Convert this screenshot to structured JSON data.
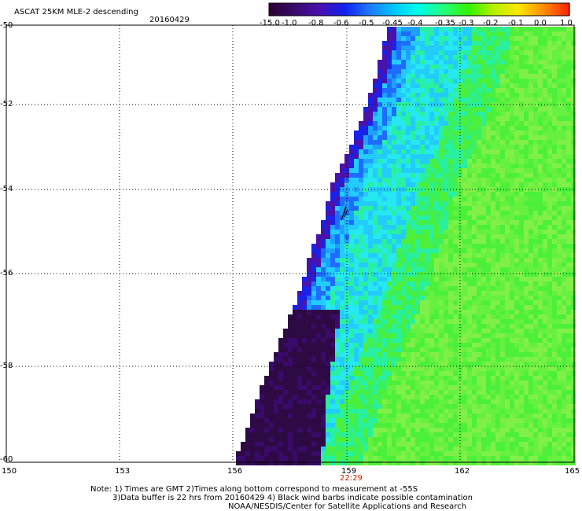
{
  "header": {
    "title": "ASCAT 25KM MLE-2 descending",
    "date": "20160429"
  },
  "colorbar": {
    "labels": [
      "-15.0",
      "-1.0",
      "-0.8",
      "-0.6",
      "-0.5",
      "-0.45",
      "-0.4",
      "-0.35",
      "-0.3",
      "-0.2",
      "-0.1",
      "0.0",
      "1.0"
    ],
    "colors": [
      "#2b0033",
      "#3a0a6a",
      "#4a10b0",
      "#1020f0",
      "#1e78ff",
      "#00c8ff",
      "#00ffe6",
      "#22ff7a",
      "#33f200",
      "#b8f000",
      "#ffe600",
      "#ff8c00",
      "#ff2200"
    ]
  },
  "axes": {
    "lat_labels": [
      "-50",
      "-52",
      "-54",
      "-56",
      "-58",
      "-60"
    ],
    "lon_labels": [
      "150",
      "153",
      "156",
      "159",
      "162",
      "165"
    ],
    "time_label": "22:29",
    "time_color": "#d02000"
  },
  "notes": {
    "line1": "Note: 1) Times are GMT 2)Times along bottom correspond to measurement at -55S",
    "line2": "3)Data buffer is 22 hrs from 20160429 4) Black wind barbs indicate possible contamination",
    "line3": "NOAA/NESDIS/Center for Satellite Applications and Research"
  }
}
